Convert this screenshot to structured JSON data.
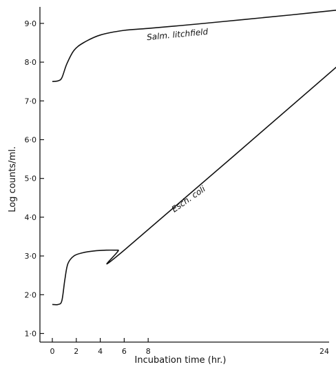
{
  "chart_data": {
    "type": "line",
    "title": "",
    "xlabel": "Incubation time (hr.)",
    "ylabel": "Log counts/ml.",
    "xlim": [
      0,
      24
    ],
    "ylim": [
      1.0,
      9.4
    ],
    "x_ticks": [
      0,
      2,
      4,
      6,
      8,
      24
    ],
    "x_tick_labels": [
      "0",
      "2",
      "4",
      "6",
      "8",
      "24"
    ],
    "y_ticks": [
      1,
      2,
      3,
      4,
      5,
      6,
      7,
      8,
      9
    ],
    "y_tick_labels": [
      "1·0",
      "2·0",
      "3·0",
      "4·0",
      "5·0",
      "6·0",
      "7·0",
      "8·0",
      "9·0"
    ],
    "grid": false,
    "series": [
      {
        "name": "Salm. litchfield",
        "x": [
          0,
          0.5,
          0.8,
          1.2,
          1.8,
          2.6,
          4,
          6,
          8,
          12,
          16,
          20,
          24
        ],
        "y": [
          7.5,
          7.52,
          7.6,
          7.95,
          8.3,
          8.5,
          8.7,
          8.82,
          8.87,
          8.98,
          9.1,
          9.22,
          9.35
        ]
      },
      {
        "name": "Esch. coli",
        "x": [
          0,
          0.5,
          0.8,
          1.05,
          1.3,
          1.8,
          2.5,
          3.5,
          4.5,
          5.5,
          6,
          24
        ],
        "y": [
          1.75,
          1.75,
          1.85,
          2.4,
          2.8,
          3.0,
          3.08,
          3.13,
          3.15,
          3.15,
          3.15,
          7.95
        ]
      }
    ]
  }
}
